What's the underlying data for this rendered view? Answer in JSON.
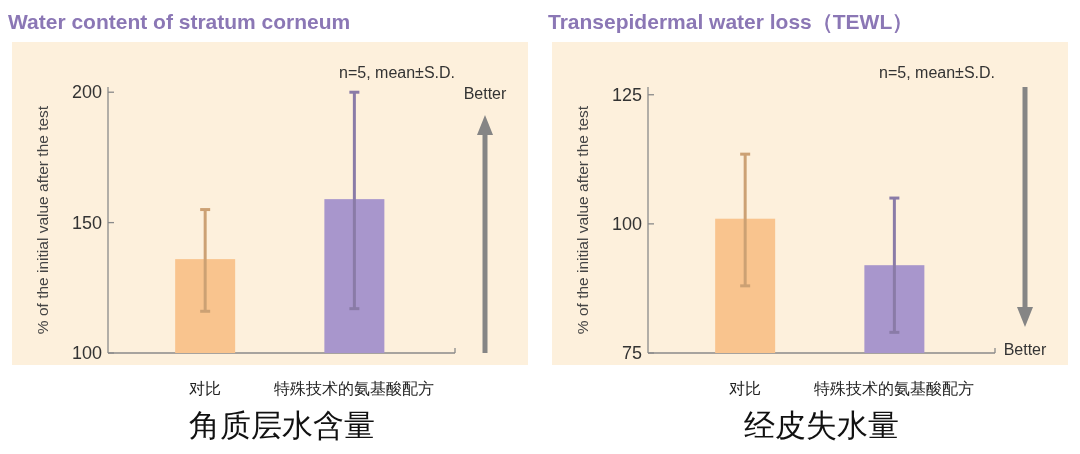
{
  "chart_data": [
    {
      "type": "bar",
      "title": "Water content of stratum corneum",
      "ylabel": "% of the initial value after the test",
      "xlabel": "角质层水含量",
      "categories": [
        "对比",
        "特殊技术的氨基酸配方"
      ],
      "values": [
        136,
        159
      ],
      "colors": [
        "#f9c48e",
        "#a896cc"
      ],
      "errors": [
        [
          116,
          155
        ],
        [
          117,
          200
        ]
      ],
      "ylim": [
        100,
        202
      ],
      "yticks": [
        100,
        150,
        200
      ],
      "annotations": [
        "n=5, mean±S.D.",
        "Better"
      ]
    },
    {
      "type": "bar",
      "title": "Transepidermal water loss（TEWL）",
      "ylabel": "% of the initial value after the test",
      "xlabel": "经皮失水量",
      "categories": [
        "对比",
        "特殊技术的氨基酸配方"
      ],
      "values": [
        101,
        92
      ],
      "colors": [
        "#f9c48e",
        "#a896cc"
      ],
      "errors": [
        [
          88,
          113.5
        ],
        [
          79,
          105
        ]
      ],
      "ylim": [
        75,
        126.5
      ],
      "yticks": [
        75,
        100,
        125
      ],
      "annotations": [
        "n=5, mean±S.D.",
        "Better"
      ]
    }
  ]
}
